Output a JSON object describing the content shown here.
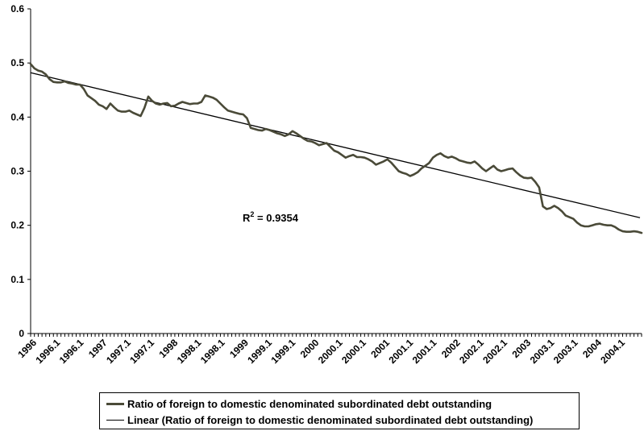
{
  "chart_data": {
    "type": "line",
    "title": "",
    "xlabel": "",
    "ylabel": "",
    "ylim": [
      0,
      0.6
    ],
    "yticks": [
      "0",
      "0.1",
      "0.2",
      "0.3",
      "0.4",
      "0.5",
      "0.6"
    ],
    "xtick_labels": [
      "1996",
      "1996.1",
      "1996.1",
      "1997",
      "1997.1",
      "1997.1",
      "1998",
      "1998.1",
      "1998.1",
      "1999",
      "1999.1",
      "1999.1",
      "2000",
      "2000.1",
      "2000.1",
      "2001",
      "2001.1",
      "2001.1",
      "2002",
      "2002.1",
      "2002.1",
      "2003",
      "2003.1",
      "2003.1",
      "2004",
      "2004.1"
    ],
    "grid": false,
    "legend_position": "bottom",
    "annotation": {
      "text": "R",
      "sup": "2",
      "rest": " = 0.9354"
    },
    "series": [
      {
        "name": "Ratio of foreign to domestic denominated subordinated debt outstanding",
        "color": "#4a4a38",
        "values": [
          0.498,
          0.49,
          0.486,
          0.484,
          0.479,
          0.47,
          0.465,
          0.464,
          0.464,
          0.466,
          0.463,
          0.462,
          0.46,
          0.46,
          0.452,
          0.44,
          0.435,
          0.43,
          0.423,
          0.42,
          0.415,
          0.425,
          0.418,
          0.412,
          0.41,
          0.41,
          0.412,
          0.408,
          0.405,
          0.402,
          0.417,
          0.438,
          0.43,
          0.425,
          0.423,
          0.425,
          0.426,
          0.42,
          0.421,
          0.425,
          0.428,
          0.426,
          0.424,
          0.425,
          0.425,
          0.428,
          0.44,
          0.438,
          0.436,
          0.432,
          0.425,
          0.418,
          0.412,
          0.41,
          0.408,
          0.406,
          0.405,
          0.398,
          0.38,
          0.378,
          0.376,
          0.375,
          0.378,
          0.376,
          0.373,
          0.37,
          0.368,
          0.365,
          0.368,
          0.374,
          0.37,
          0.365,
          0.36,
          0.356,
          0.355,
          0.352,
          0.348,
          0.35,
          0.352,
          0.345,
          0.338,
          0.335,
          0.33,
          0.325,
          0.328,
          0.33,
          0.326,
          0.326,
          0.325,
          0.322,
          0.318,
          0.312,
          0.315,
          0.318,
          0.322,
          0.316,
          0.308,
          0.3,
          0.297,
          0.295,
          0.291,
          0.294,
          0.298,
          0.305,
          0.31,
          0.315,
          0.325,
          0.33,
          0.333,
          0.328,
          0.325,
          0.327,
          0.324,
          0.32,
          0.318,
          0.316,
          0.315,
          0.318,
          0.312,
          0.305,
          0.3,
          0.305,
          0.31,
          0.303,
          0.3,
          0.302,
          0.304,
          0.305,
          0.298,
          0.292,
          0.288,
          0.287,
          0.288,
          0.28,
          0.27,
          0.235,
          0.23,
          0.232,
          0.236,
          0.232,
          0.226,
          0.218,
          0.215,
          0.212,
          0.205,
          0.2,
          0.198,
          0.198,
          0.2,
          0.202,
          0.203,
          0.201,
          0.2,
          0.2,
          0.197,
          0.192,
          0.189,
          0.188,
          0.188,
          0.189,
          0.188,
          0.186
        ]
      },
      {
        "name": "Linear (Ratio of foreign to domestic denominated subordinated debt outstanding)",
        "color": "#000000",
        "trend_start": 0.482,
        "trend_end": 0.214
      }
    ]
  }
}
